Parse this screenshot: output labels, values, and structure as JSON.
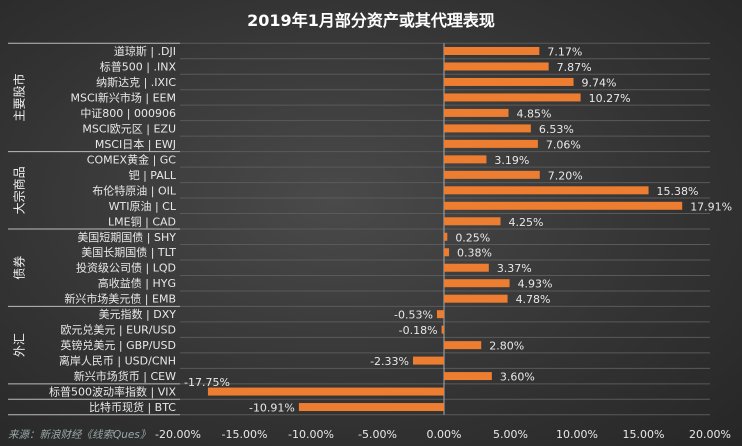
{
  "chart_data": {
    "type": "bar",
    "orientation": "horizontal",
    "title": "2019年1月部分资产或其代理表现",
    "categories": [
      "道琼斯 | .DJI",
      "标普500 | .INX",
      "纳斯达克 | .IXIC",
      "MSCI新兴市场 | EEM",
      "中证800 | 000906",
      "MSCI欧元区 | EZU",
      "MSCI日本 | EWJ",
      "COMEX黄金 | GC",
      "钯 | PALL",
      "布伦特原油 | OIL",
      "WTI原油 | CL",
      "LME铜 | CAD",
      "美国短期国债 | SHY",
      "美国长期国债 | TLT",
      "投资级公司债 | LQD",
      "高收益债 | HYG",
      "新兴市场美元债 | EMB",
      "美元指数 | DXY",
      "欧元兑美元 | EUR/USD",
      "英镑兑美元 | GBP/USD",
      "离岸人民币 | USD/CNH",
      "新兴市场货币 | CEW",
      "标普500波动率指数 | VIX",
      "比特币现货 | BTC"
    ],
    "values": [
      7.17,
      7.87,
      9.74,
      10.27,
      4.85,
      6.53,
      7.06,
      3.19,
      7.2,
      15.38,
      17.91,
      4.25,
      0.25,
      0.38,
      3.37,
      4.93,
      4.78,
      -0.53,
      -0.18,
      2.8,
      -2.33,
      3.6,
      -17.75,
      -10.91
    ],
    "value_labels": [
      "7.17%",
      "7.87%",
      "9.74%",
      "10.27%",
      "4.85%",
      "6.53%",
      "7.06%",
      "3.19%",
      "7.20%",
      "15.38%",
      "17.91%",
      "4.25%",
      "0.25%",
      "0.38%",
      "3.37%",
      "4.93%",
      "4.78%",
      "-0.53%",
      "-0.18%",
      "2.80%",
      "-2.33%",
      "3.60%",
      "-17.75%",
      "-10.91%"
    ],
    "groups": [
      {
        "label": "主要股市",
        "start": 0,
        "end": 6
      },
      {
        "label": "大宗商品",
        "start": 7,
        "end": 11
      },
      {
        "label": "债券",
        "start": 12,
        "end": 16
      },
      {
        "label": "外汇",
        "start": 17,
        "end": 21
      },
      {
        "label": "",
        "start": 22,
        "end": 22
      },
      {
        "label": "",
        "start": 23,
        "end": 23
      }
    ],
    "xlim": [
      -20,
      20
    ],
    "xticks": [
      -20,
      -15,
      -10,
      -5,
      0,
      5,
      10,
      15,
      20
    ],
    "xtick_labels": [
      "-20.00%",
      "-15.00%",
      "-10.00%",
      "-5.00%",
      "0.00%",
      "5.00%",
      "10.00%",
      "15.00%",
      "20.00%"
    ],
    "xlabel": "",
    "ylabel": "",
    "grid": "horizontal",
    "bar_color": "#ed7d31"
  },
  "source": "来源：新浪财经《线索Ques》"
}
